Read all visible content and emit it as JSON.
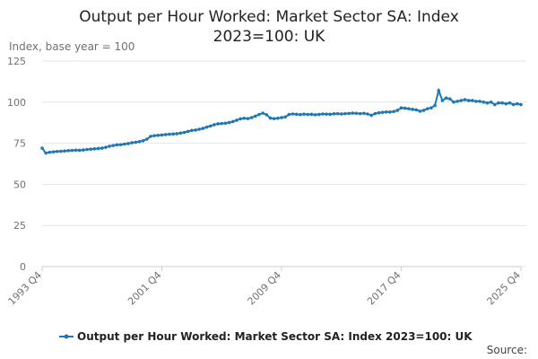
{
  "chart_data": {
    "type": "line",
    "title": "Output per Hour Worked: Market Sector SA: Index 2023=100: UK",
    "y_label": "Index, base year = 100",
    "source": "Source:",
    "categories": [
      "1993 Q4",
      null,
      null,
      null,
      null,
      null,
      null,
      null,
      null,
      null,
      null,
      null,
      null,
      null,
      null,
      null,
      null,
      null,
      null,
      null,
      null,
      null,
      null,
      null,
      null,
      null,
      null,
      null,
      null,
      null,
      null,
      null,
      "2001 Q4",
      null,
      null,
      null,
      null,
      null,
      null,
      null,
      null,
      null,
      null,
      null,
      null,
      null,
      null,
      null,
      null,
      null,
      null,
      null,
      null,
      null,
      null,
      null,
      null,
      null,
      null,
      null,
      null,
      null,
      null,
      null,
      "2009 Q4",
      null,
      null,
      null,
      null,
      null,
      null,
      null,
      null,
      null,
      null,
      null,
      null,
      null,
      null,
      null,
      null,
      null,
      null,
      null,
      null,
      null,
      null,
      null,
      null,
      null,
      null,
      null,
      null,
      null,
      null,
      null,
      "2017 Q4",
      null,
      null,
      null,
      null,
      null,
      null,
      null,
      null,
      null,
      null,
      null,
      null,
      null,
      null,
      null,
      null,
      null,
      null,
      null,
      null,
      null,
      null,
      null,
      null,
      null,
      null,
      null,
      null,
      null,
      null,
      null,
      "2025 Q4"
    ],
    "series": [
      {
        "name": "Output per Hour Worked: Market Sector SA: Index 2023=100: UK",
        "color": "#1f78b4",
        "values": [
          72,
          69,
          69.5,
          69.8,
          70,
          70.1,
          70.3,
          70.5,
          70.6,
          70.8,
          70.7,
          70.9,
          71.2,
          71.4,
          71.6,
          71.8,
          72,
          72.5,
          73.2,
          73.6,
          74,
          74.1,
          74.5,
          74.8,
          75.3,
          75.6,
          76,
          76.5,
          77.5,
          79.2,
          79.6,
          79.8,
          80,
          80.3,
          80.5,
          80.6,
          80.8,
          81.2,
          81.6,
          82.2,
          82.8,
          83,
          83.5,
          84,
          84.8,
          85.5,
          86.3,
          86.8,
          87,
          87.2,
          87.6,
          88.2,
          89,
          89.8,
          90.2,
          90,
          90.6,
          91.5,
          92.5,
          93.3,
          92.3,
          90.3,
          90,
          90.2,
          90.6,
          91,
          92.5,
          92.8,
          92.6,
          92.4,
          92.7,
          92.5,
          92.6,
          92.3,
          92.5,
          92.8,
          92.7,
          92.6,
          92.9,
          93,
          92.8,
          93,
          93.1,
          93.3,
          93.2,
          93,
          93.2,
          92.8,
          92,
          93,
          93.5,
          93.8,
          94,
          94,
          94.3,
          95,
          96.5,
          96.3,
          96,
          95.6,
          95.3,
          94.5,
          95,
          96,
          96.5,
          98,
          107,
          101,
          102.5,
          102,
          100,
          100.5,
          101,
          101.5,
          101,
          101,
          100.5,
          100.5,
          100,
          99.5,
          100,
          98.5,
          99.5,
          99.5,
          99,
          99.5,
          98.5,
          99,
          98.5
        ]
      }
    ],
    "ylim": [
      0,
      125
    ],
    "yticks": [
      0,
      25,
      50,
      75,
      100,
      125
    ],
    "grid": true,
    "legend": "bottom"
  }
}
